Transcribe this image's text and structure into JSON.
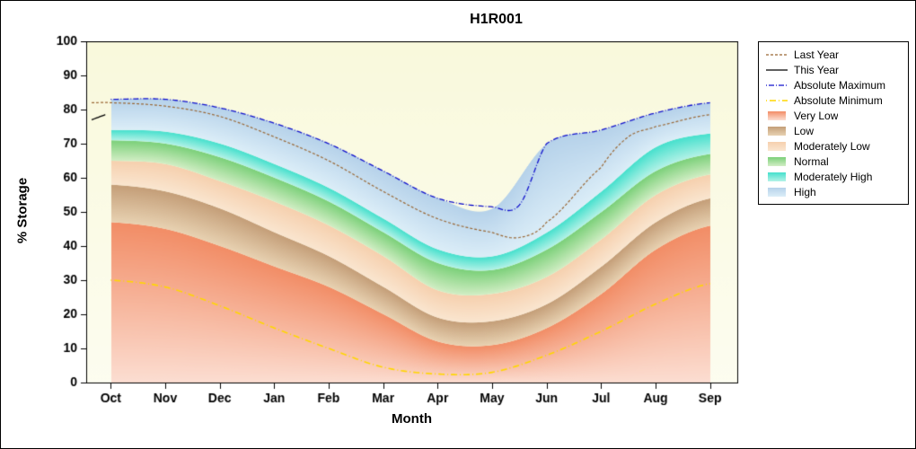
{
  "chart_data": {
    "type": "area",
    "title": "H1R001",
    "xlabel": "Month",
    "ylabel": "% Storage",
    "ylim": [
      0,
      100
    ],
    "y_ticks": [
      0,
      10,
      20,
      30,
      40,
      50,
      60,
      70,
      80,
      90,
      100
    ],
    "x_categories": [
      "Oct",
      "Nov",
      "Dec",
      "Jan",
      "Feb",
      "Mar",
      "Apr",
      "May",
      "Jun",
      "Jul",
      "Aug",
      "Sep"
    ],
    "month_index": [
      0,
      1,
      2,
      3,
      4,
      5,
      6,
      7,
      8,
      9,
      10,
      11
    ],
    "plot_background": {
      "top": "#f9f9dc",
      "bottom": "#fdfdf0"
    },
    "bands": [
      {
        "name": "Very Low",
        "upper": [
          47,
          45,
          40,
          34,
          28,
          20,
          12,
          11,
          16,
          26,
          39,
          46
        ],
        "color_top": "#f28d66",
        "color_bottom": "#fcded2"
      },
      {
        "name": "Low",
        "upper": [
          58,
          56,
          51,
          44,
          37,
          28,
          19,
          18,
          23,
          34,
          47,
          54
        ],
        "color_top": "#c49e78",
        "color_bottom": "#e8d2b2"
      },
      {
        "name": "Moderately Low",
        "upper": [
          65,
          64,
          59,
          53,
          46,
          37,
          27,
          26,
          31,
          42,
          55,
          61
        ],
        "color_top": "#f6d0ae",
        "color_bottom": "#fae6d0"
      },
      {
        "name": "Normal",
        "upper": [
          71,
          70,
          66,
          60,
          53,
          44,
          35,
          33,
          39,
          50,
          62,
          67
        ],
        "color_top": "#7bd079",
        "color_bottom": "#d2eec5"
      },
      {
        "name": "Moderately High",
        "upper": [
          74,
          73.5,
          70,
          64,
          57,
          48,
          39,
          37,
          44,
          56,
          69,
          73
        ],
        "color_top": "#45e0cd",
        "color_bottom": "#b4f2e7"
      },
      {
        "name": "High",
        "upper": [
          83,
          83,
          80.5,
          76,
          70,
          62,
          54,
          51,
          70,
          74,
          79,
          82
        ],
        "color_top": "#b6d2ea",
        "color_bottom": "#dceef8"
      }
    ],
    "lines": [
      {
        "name": "Absolute Maximum",
        "x": [
          0,
          1,
          2,
          3,
          4,
          5,
          6,
          7,
          7.5,
          8,
          9,
          10,
          11
        ],
        "y": [
          83,
          83,
          80.5,
          76,
          70,
          62,
          54,
          51.5,
          52,
          70,
          74,
          79,
          82
        ],
        "color": "#1111cc",
        "dash": [
          1,
          2,
          6,
          2
        ],
        "width": 1.3
      },
      {
        "name": "Absolute Minimum",
        "x": [
          0,
          1,
          2,
          3,
          4,
          5,
          6,
          7,
          8,
          9,
          10,
          11
        ],
        "y": [
          30,
          28,
          22.5,
          16,
          10,
          4.5,
          2.5,
          3,
          8,
          15,
          23,
          29
        ],
        "color": "#ffd700",
        "dash": [
          1,
          3,
          7,
          3
        ],
        "width": 1.6
      },
      {
        "name": "Last Year",
        "x": [
          -0.35,
          0,
          1,
          2,
          3,
          4,
          5,
          6,
          7,
          7.5,
          8,
          9,
          9.5,
          10,
          11
        ],
        "y": [
          82,
          82,
          81,
          78,
          72,
          65,
          56,
          48,
          44,
          42.5,
          47,
          63,
          72,
          75,
          78.5
        ],
        "color": "#996633",
        "dash": [
          3,
          2
        ],
        "width": 1.2
      },
      {
        "name": "This Year",
        "x": [
          -0.35,
          -0.1
        ],
        "y": [
          77,
          78.5
        ],
        "color": "#000000",
        "dash": [],
        "width": 1.3
      }
    ],
    "legend": {
      "items": [
        {
          "label": "Last Year",
          "type": "line",
          "color": "#996633",
          "dash": "3,2",
          "width": 1.2
        },
        {
          "label": "This Year",
          "type": "line",
          "color": "#000000",
          "dash": "",
          "width": 1.3
        },
        {
          "label": "Absolute Maximum",
          "type": "line",
          "color": "#1111cc",
          "dash": "1,2,6,2",
          "width": 1.3
        },
        {
          "label": "Absolute Minimum",
          "type": "line",
          "color": "#ffd700",
          "dash": "1,3,7,3",
          "width": 1.6
        },
        {
          "label": "Very Low",
          "type": "box",
          "color_top": "#f28d66",
          "color_bottom": "#fcded2"
        },
        {
          "label": "Low",
          "type": "box",
          "color_top": "#c49e78",
          "color_bottom": "#e8d2b2"
        },
        {
          "label": "Moderately Low",
          "type": "box",
          "color_top": "#f6d0ae",
          "color_bottom": "#fae6d0"
        },
        {
          "label": "Normal",
          "type": "box",
          "color_top": "#7bd079",
          "color_bottom": "#d2eec5"
        },
        {
          "label": "Moderately High",
          "type": "box",
          "color_top": "#45e0cd",
          "color_bottom": "#b4f2e7"
        },
        {
          "label": "High",
          "type": "box",
          "color_top": "#b6d2ea",
          "color_bottom": "#dceef8"
        }
      ]
    }
  }
}
